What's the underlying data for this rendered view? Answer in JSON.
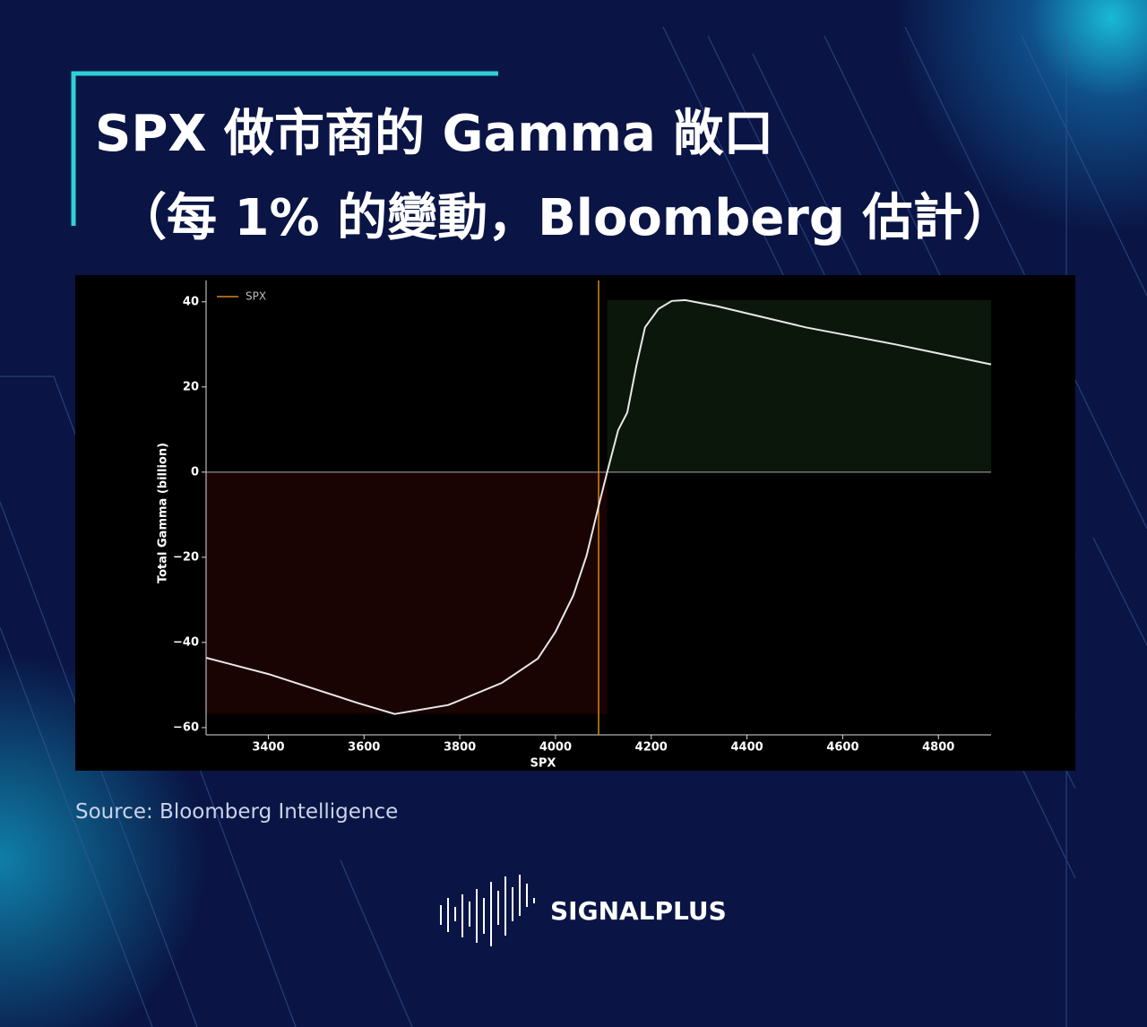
{
  "chart_data": {
    "type": "line",
    "title": "SPX 做市商的 Gamma 敞口",
    "subtitle": "（每 1% 的變動，Bloomberg 估計）",
    "x_label": "SPX",
    "y_label": "Total Gamma (billion)",
    "x": [
      3270,
      3400,
      3589,
      3664,
      3776,
      3888,
      3963,
      4000,
      4037,
      4065,
      4090,
      4108,
      4131,
      4150,
      4169,
      4187,
      4215,
      4243,
      4271,
      4336,
      4523,
      4710,
      4910
    ],
    "series": [
      {
        "color": "#e8e8e8",
        "values": [
          -43.6,
          -47.4,
          -54.3,
          -56.8,
          -54.7,
          -49.5,
          -43.8,
          -37.5,
          -29,
          -19.6,
          -8,
          0,
          9.9,
          14,
          25,
          34,
          38.3,
          40.2,
          40.4,
          39,
          34,
          30,
          25.3
        ]
      }
    ],
    "vline": {
      "name": "SPX",
      "x": 4090,
      "color": "#d4881e"
    },
    "hline": 0,
    "xlim": [
      3270,
      4910
    ],
    "ylim": [
      -61.7,
      45
    ],
    "xticks": [
      3400,
      3600,
      3800,
      4000,
      4200,
      4400,
      4600,
      4800
    ],
    "yticks": [
      {
        "value": -60,
        "label": "−60"
      },
      {
        "value": -40,
        "label": "−40"
      },
      {
        "value": -20,
        "label": "−20"
      },
      0,
      20,
      40
    ],
    "legend": "upper left",
    "source": "Source: Bloomberg Intelligence",
    "brand": "SIGNALPLUS"
  }
}
